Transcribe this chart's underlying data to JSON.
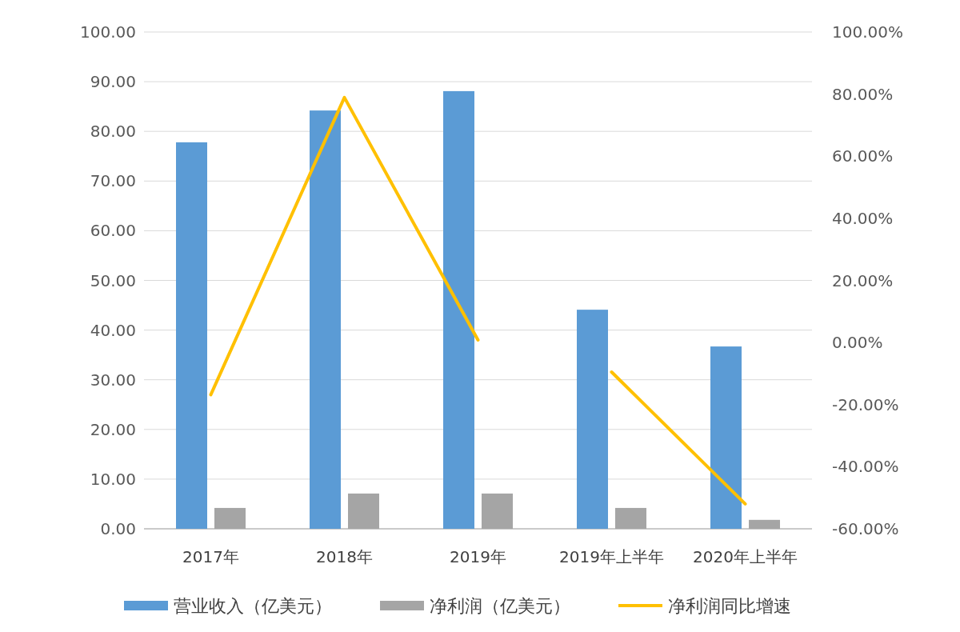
{
  "chart_data": {
    "type": "bar",
    "categories": [
      "2017年",
      "2018年",
      "2019年",
      "2019年上半年",
      "2020年上半年"
    ],
    "series": [
      {
        "name": "营业收入（亿美元）",
        "color": "#5b9bd5",
        "values": [
          77.8,
          84.2,
          88.1,
          44.1,
          36.7
        ]
      },
      {
        "name": "净利润（亿美元）",
        "color": "#a5a5a5",
        "values": [
          4.2,
          7.1,
          7.1,
          4.2,
          1.8
        ]
      },
      {
        "name": "净利润同比增速",
        "type": "line",
        "axis": "y2",
        "color": "#ffc000",
        "values": [
          -16.8,
          78.9,
          0.8,
          null,
          null
        ]
      },
      {
        "type": "line",
        "axis": "y2",
        "color": "#ffc000",
        "values": [
          null,
          null,
          null,
          -9.5,
          -52
        ]
      }
    ],
    "ylim": [
      0,
      100
    ],
    "yticks": [
      {
        "value": 0,
        "label": "0.00"
      },
      {
        "value": 10,
        "label": "10.00"
      },
      {
        "value": 20,
        "label": "20.00"
      },
      {
        "value": 30,
        "label": "30.00"
      },
      {
        "value": 40,
        "label": "40.00"
      },
      {
        "value": 50,
        "label": "50.00"
      },
      {
        "value": 60,
        "label": "60.00"
      },
      {
        "value": 70,
        "label": "70.00"
      },
      {
        "value": 80,
        "label": "80.00"
      },
      {
        "value": 90,
        "label": "90.00"
      },
      {
        "value": 100,
        "label": "100.00"
      }
    ],
    "y2lim": [
      -60,
      100
    ],
    "y2ticks": [
      {
        "value": -60,
        "label": "-60.00%"
      },
      {
        "value": -40,
        "label": "-40.00%"
      },
      {
        "value": -20,
        "label": "-20.00%"
      },
      {
        "value": 0,
        "label": "0.00%"
      },
      {
        "value": 20,
        "label": "20.00%"
      },
      {
        "value": 40,
        "label": "40.00%"
      },
      {
        "value": 60,
        "label": "60.00%"
      },
      {
        "value": 80,
        "label": "80.00%"
      },
      {
        "value": 100,
        "label": "100.00%"
      }
    ],
    "grid": "y",
    "legend": "bottom"
  }
}
